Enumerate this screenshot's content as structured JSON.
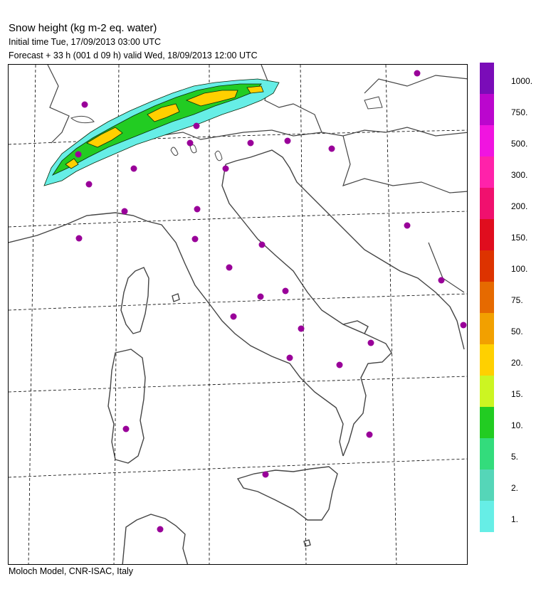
{
  "header": {
    "title": "Snow height (kg m-2 eq. water)",
    "initial_time": "Initial time  Tue, 17/09/2013  03:00 UTC",
    "forecast": "Forecast  +  33 h   (001 d 09 h)   valid Wed, 18/09/2013 12:00 UTC"
  },
  "footer": {
    "credit": "Moloch Model, CNR-ISAC, Italy"
  },
  "legend": {
    "levels": [
      {
        "label": "1.",
        "color": "#66eee6"
      },
      {
        "label": "2.",
        "color": "#55d6b8"
      },
      {
        "label": "5.",
        "color": "#33dc7c"
      },
      {
        "label": "10.",
        "color": "#22cc22"
      },
      {
        "label": "15.",
        "color": "#ccf522"
      },
      {
        "label": "20.",
        "color": "#ffd000"
      },
      {
        "label": "50.",
        "color": "#f2a000"
      },
      {
        "label": "75.",
        "color": "#e66a00"
      },
      {
        "label": "100.",
        "color": "#dd3300"
      },
      {
        "label": "150.",
        "color": "#e00d1e"
      },
      {
        "label": "200.",
        "color": "#f0106e"
      },
      {
        "label": "300.",
        "color": "#ff22aa"
      },
      {
        "label": "500.",
        "color": "#f014e0"
      },
      {
        "label": "750.",
        "color": "#bb06ce"
      },
      {
        "label": "1000.",
        "color": "#7a0cb8"
      }
    ],
    "top_color": "#4a0d8c"
  },
  "map": {
    "station_color": "#990099",
    "coast_color": "#444444",
    "snow_colors": {
      "low": "#66eee6",
      "mid": "#22cc22",
      "high": "#ffd000",
      "edge": "#0b2a0b"
    }
  }
}
